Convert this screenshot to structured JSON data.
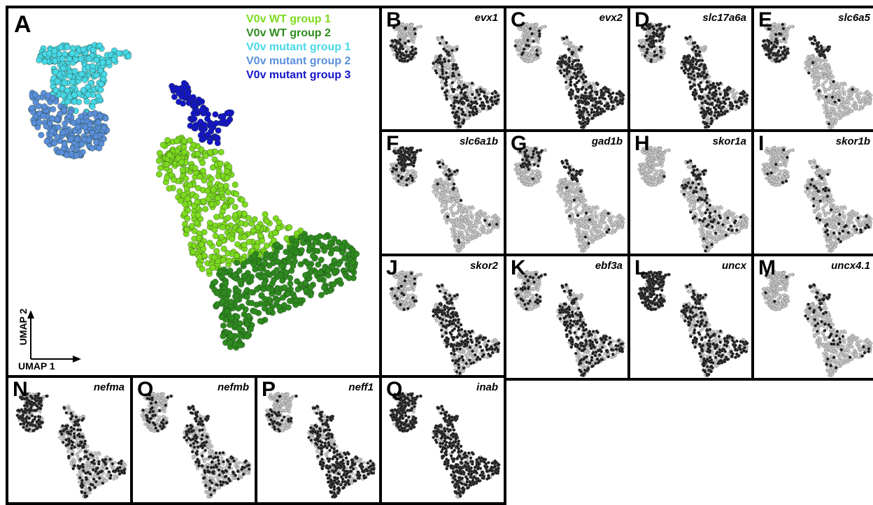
{
  "main_panel": {
    "letter": "A",
    "x_axis_label": "UMAP 1",
    "y_axis_label": "UMAP 2",
    "legend": [
      {
        "label": "V0v WT group 1",
        "color": "#7ddb1e"
      },
      {
        "label": "V0v WT group 2",
        "color": "#2e8b1e"
      },
      {
        "label": "V0v mutant group 1",
        "color": "#47d8e8"
      },
      {
        "label": "V0v mutant group 2",
        "color": "#5b8fdc"
      },
      {
        "label": "V0v mutant group 3",
        "color": "#1414c8"
      }
    ]
  },
  "gene_panels": [
    {
      "letter": "B",
      "gene": "evx1"
    },
    {
      "letter": "C",
      "gene": "evx2"
    },
    {
      "letter": "D",
      "gene": "slc17a6a"
    },
    {
      "letter": "E",
      "gene": "slc6a5"
    },
    {
      "letter": "F",
      "gene": "slc6a1b"
    },
    {
      "letter": "G",
      "gene": "gad1b"
    },
    {
      "letter": "H",
      "gene": "skor1a"
    },
    {
      "letter": "I",
      "gene": "skor1b"
    },
    {
      "letter": "J",
      "gene": "skor2"
    },
    {
      "letter": "K",
      "gene": "ebf3a"
    },
    {
      "letter": "L",
      "gene": "uncx"
    },
    {
      "letter": "M",
      "gene": "uncx4.1"
    },
    {
      "letter": "N",
      "gene": "nefma"
    },
    {
      "letter": "O",
      "gene": "nefmb"
    },
    {
      "letter": "P",
      "gene": "neff1"
    },
    {
      "letter": "Q",
      "gene": "inab"
    }
  ],
  "chart_data": {
    "type": "scatter",
    "xlabel": "UMAP 1",
    "ylabel": "UMAP 2",
    "series": [
      {
        "name": "V0v WT group 1",
        "color": "#7ddb1e"
      },
      {
        "name": "V0v WT group 2",
        "color": "#2e8b1e"
      },
      {
        "name": "V0v mutant group 1",
        "color": "#47d8e8"
      },
      {
        "name": "V0v mutant group 2",
        "color": "#5b8fdc"
      },
      {
        "name": "V0v mutant group 3",
        "color": "#1414c8"
      }
    ],
    "expression_colors": {
      "expressing": "#1a1a1a",
      "not_expressing": "#c8c8c8"
    }
  }
}
